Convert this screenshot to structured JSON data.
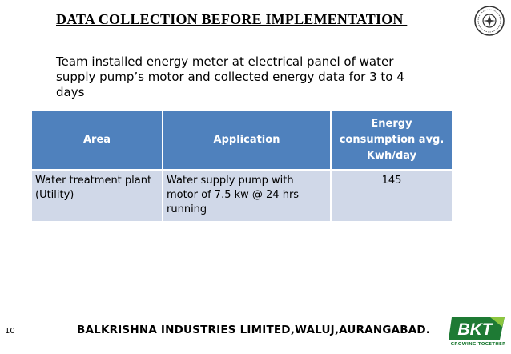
{
  "slide": {
    "title": "DATA COLLECTION BEFORE IMPLEMENTATION ",
    "intro_text": "Team installed energy meter at electrical panel of water supply pump’s motor and collected energy data for 3 to 4 days"
  },
  "table": {
    "headers": [
      "Area",
      "Application",
      "Energy consumption avg. Kwh/day"
    ],
    "rows": [
      [
        "Water treatment plant (Utility)",
        "Water supply pump with motor of 7.5 kw @ 24 hrs running",
        "145"
      ]
    ]
  },
  "footer": {
    "page_number": "10",
    "company": "BALKRISHNA INDUSTRIES LIMITED,WALUJ,AURANGABAD.",
    "brand": "BKT",
    "tagline": "GROWING TOGETHER"
  },
  "colors": {
    "header_blue": "#4f81bd",
    "row_fill": "#d0d8e8",
    "brand_green": "#1e7a34",
    "brand_lime": "#8cc63f"
  },
  "icons": {
    "seal": "circular-seal-icon",
    "logo": "bkt-logo"
  }
}
